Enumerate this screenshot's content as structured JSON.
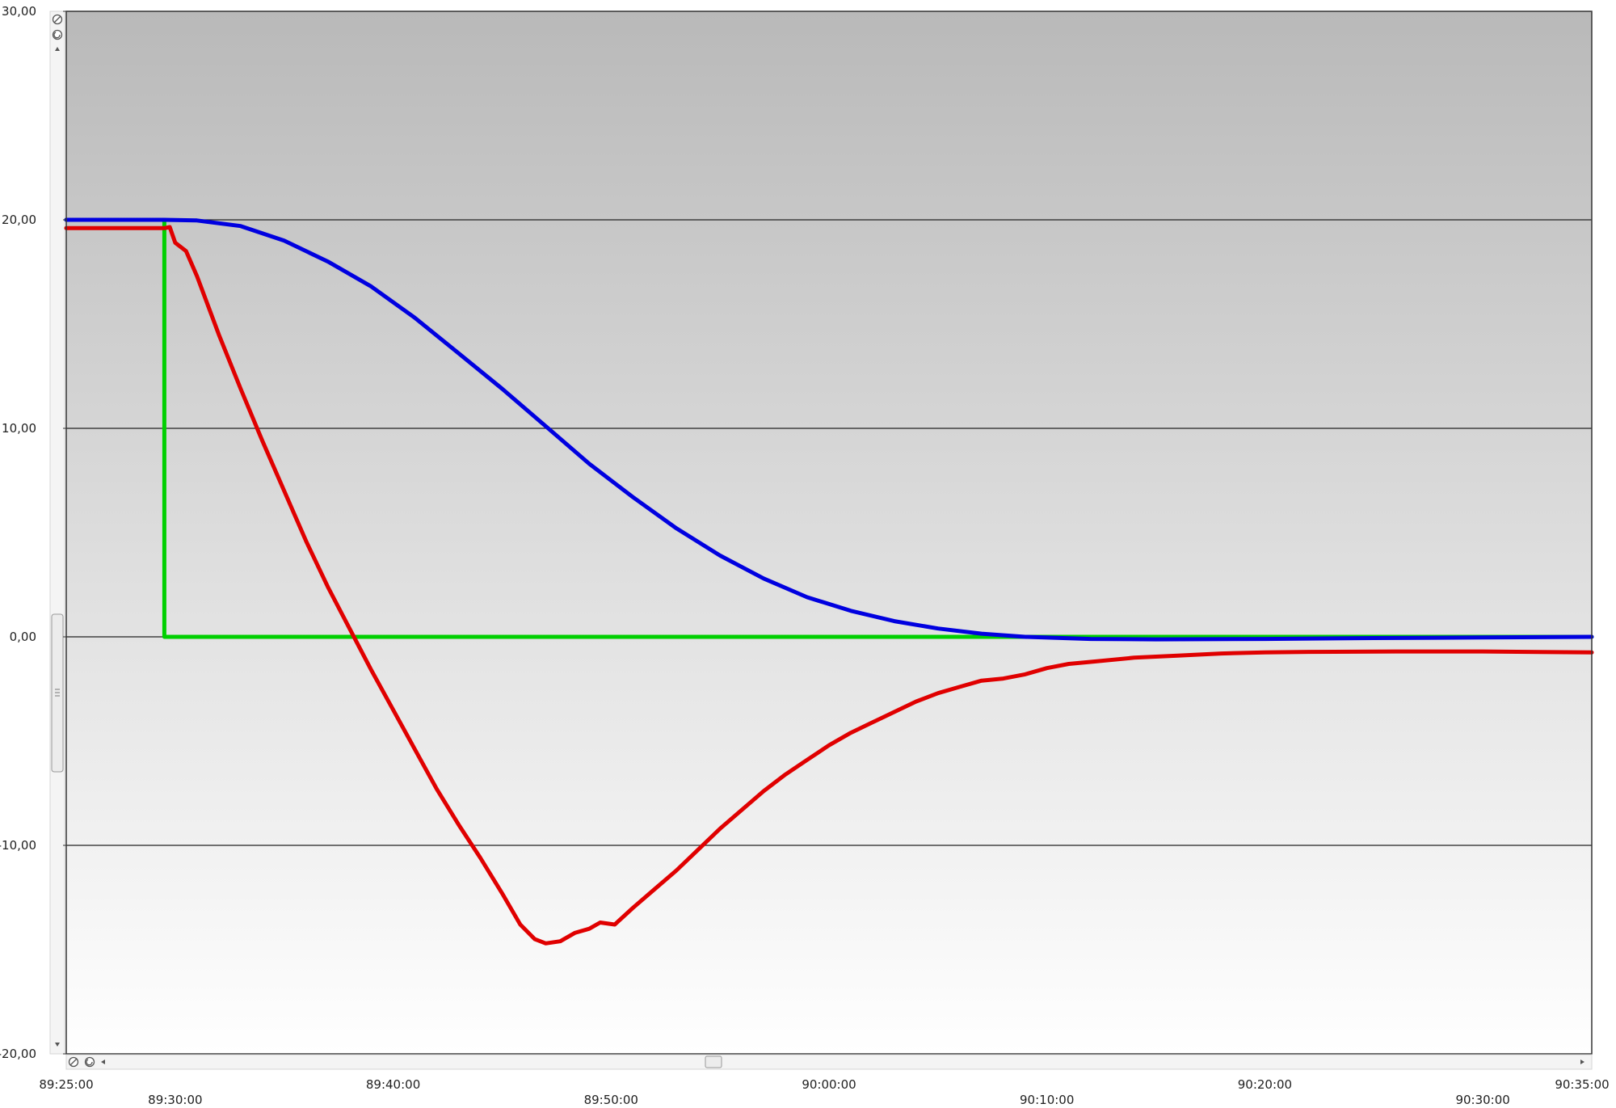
{
  "chart_data": {
    "type": "line",
    "title": "",
    "xlabel": "",
    "ylabel": "",
    "ylim": [
      -20,
      30
    ],
    "xlim": [
      "89:25:00",
      "90:35:00"
    ],
    "grid_y": true,
    "y_ticks": [
      {
        "value": 30,
        "label": "30,00"
      },
      {
        "value": 20,
        "label": "20,00"
      },
      {
        "value": 10,
        "label": "10,00"
      },
      {
        "value": 0,
        "label": "0,00"
      },
      {
        "value": -10,
        "label": "-10,00"
      },
      {
        "value": -20,
        "label": "-20,00"
      }
    ],
    "x_ticks": [
      {
        "value": "89:25:00",
        "label": "89:25:00"
      },
      {
        "value": "89:30:00",
        "label": "89:30:00"
      },
      {
        "value": "89:40:00",
        "label": "89:40:00"
      },
      {
        "value": "89:50:00",
        "label": "89:50:00"
      },
      {
        "value": "90:00:00",
        "label": "90:00:00"
      },
      {
        "value": "90:10:00",
        "label": "90:10:00"
      },
      {
        "value": "90:20:00",
        "label": "90:20:00"
      },
      {
        "value": "90:30:00",
        "label": "90:30:00"
      },
      {
        "value": "90:35:00",
        "label": "90:35:00"
      }
    ],
    "series": [
      {
        "color": "#00d000",
        "step": true,
        "points": [
          [
            "89:25:00",
            20
          ],
          [
            "89:29:30",
            20
          ],
          [
            "89:29:30",
            0
          ],
          [
            "90:35:00",
            0
          ]
        ]
      },
      {
        "color": "#0000e0",
        "points": [
          [
            "89:25:00",
            20
          ],
          [
            "89:29:30",
            20
          ],
          [
            "89:31:00",
            19.97
          ],
          [
            "89:33:00",
            19.7
          ],
          [
            "89:35:00",
            19.0
          ],
          [
            "89:37:00",
            18.0
          ],
          [
            "89:39:00",
            16.8
          ],
          [
            "89:41:00",
            15.3
          ],
          [
            "89:43:00",
            13.6
          ],
          [
            "89:45:00",
            11.9
          ],
          [
            "89:47:00",
            10.1
          ],
          [
            "89:49:00",
            8.3
          ],
          [
            "89:51:00",
            6.7
          ],
          [
            "89:53:00",
            5.2
          ],
          [
            "89:55:00",
            3.9
          ],
          [
            "89:57:00",
            2.8
          ],
          [
            "89:59:00",
            1.9
          ],
          [
            "90:01:00",
            1.25
          ],
          [
            "90:03:00",
            0.75
          ],
          [
            "90:05:00",
            0.4
          ],
          [
            "90:07:00",
            0.15
          ],
          [
            "90:09:00",
            0.0
          ],
          [
            "90:12:00",
            -0.1
          ],
          [
            "90:15:00",
            -0.12
          ],
          [
            "90:20:00",
            -0.1
          ],
          [
            "90:25:00",
            -0.06
          ],
          [
            "90:30:00",
            -0.03
          ],
          [
            "90:35:00",
            0.0
          ]
        ]
      },
      {
        "color": "#e00000",
        "points": [
          [
            "89:25:00",
            19.6
          ],
          [
            "89:29:30",
            19.6
          ],
          [
            "89:29:45",
            19.65
          ],
          [
            "89:30:00",
            18.9
          ],
          [
            "89:30:30",
            18.5
          ],
          [
            "89:31:00",
            17.3
          ],
          [
            "89:32:00",
            14.5
          ],
          [
            "89:33:00",
            11.9
          ],
          [
            "89:34:00",
            9.4
          ],
          [
            "89:35:00",
            7.0
          ],
          [
            "89:36:00",
            4.6
          ],
          [
            "89:37:00",
            2.4
          ],
          [
            "89:38:00",
            0.4
          ],
          [
            "89:39:00",
            -1.6
          ],
          [
            "89:40:00",
            -3.5
          ],
          [
            "89:41:00",
            -5.4
          ],
          [
            "89:42:00",
            -7.3
          ],
          [
            "89:43:00",
            -9.0
          ],
          [
            "89:44:00",
            -10.6
          ],
          [
            "89:45:00",
            -12.3
          ],
          [
            "89:45:50",
            -13.8
          ],
          [
            "89:46:30",
            -14.5
          ],
          [
            "89:47:00",
            -14.7
          ],
          [
            "89:47:40",
            -14.6
          ],
          [
            "89:48:20",
            -14.2
          ],
          [
            "89:49:00",
            -14.0
          ],
          [
            "89:49:30",
            -13.7
          ],
          [
            "89:50:10",
            -13.8
          ],
          [
            "89:51:00",
            -13.0
          ],
          [
            "89:52:00",
            -12.1
          ],
          [
            "89:53:00",
            -11.2
          ],
          [
            "89:54:00",
            -10.2
          ],
          [
            "89:55:00",
            -9.2
          ],
          [
            "89:56:00",
            -8.3
          ],
          [
            "89:57:00",
            -7.4
          ],
          [
            "89:58:00",
            -6.6
          ],
          [
            "89:59:00",
            -5.9
          ],
          [
            "90:00:00",
            -5.2
          ],
          [
            "90:01:00",
            -4.6
          ],
          [
            "90:02:00",
            -4.1
          ],
          [
            "90:03:00",
            -3.6
          ],
          [
            "90:04:00",
            -3.1
          ],
          [
            "90:05:00",
            -2.7
          ],
          [
            "90:06:00",
            -2.4
          ],
          [
            "90:07:00",
            -2.1
          ],
          [
            "90:08:00",
            -2.0
          ],
          [
            "90:09:00",
            -1.8
          ],
          [
            "90:10:00",
            -1.5
          ],
          [
            "90:11:00",
            -1.3
          ],
          [
            "90:12:00",
            -1.2
          ],
          [
            "90:14:00",
            -1.0
          ],
          [
            "90:16:00",
            -0.9
          ],
          [
            "90:18:00",
            -0.8
          ],
          [
            "90:20:00",
            -0.75
          ],
          [
            "90:22:00",
            -0.72
          ],
          [
            "90:26:00",
            -0.7
          ],
          [
            "90:30:00",
            -0.7
          ],
          [
            "90:35:00",
            -0.75
          ]
        ]
      }
    ]
  }
}
